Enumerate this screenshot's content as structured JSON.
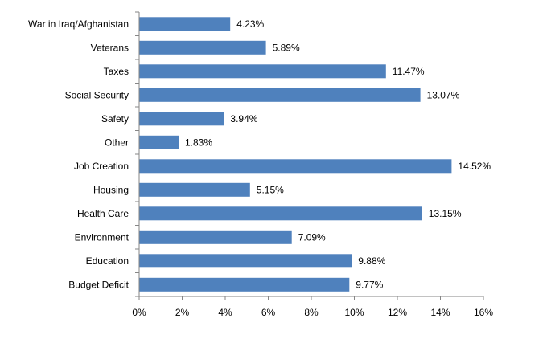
{
  "chart_data": {
    "type": "bar",
    "orientation": "horizontal",
    "categories": [
      "War in Iraq/Afghanistan",
      "Veterans",
      "Taxes",
      "Social Security",
      "Safety",
      "Other",
      "Job Creation",
      "Housing",
      "Health Care",
      "Environment",
      "Education",
      "Budget Deficit"
    ],
    "values": [
      4.23,
      5.89,
      11.47,
      13.07,
      3.94,
      1.83,
      14.52,
      5.15,
      13.15,
      7.09,
      9.88,
      9.77
    ],
    "value_labels": [
      "4.23%",
      "5.89%",
      "11.47%",
      "13.07%",
      "3.94%",
      "1.83%",
      "14.52%",
      "5.15%",
      "13.15%",
      "7.09%",
      "9.88%",
      "9.77%"
    ],
    "xlim": [
      0,
      16
    ],
    "xticks": [
      0,
      2,
      4,
      6,
      8,
      10,
      12,
      14,
      16
    ],
    "xtick_labels": [
      "0%",
      "2%",
      "4%",
      "6%",
      "8%",
      "10%",
      "12%",
      "14%",
      "16%"
    ],
    "grid": false,
    "legend": "none",
    "bar_color": "#4f81bd"
  }
}
